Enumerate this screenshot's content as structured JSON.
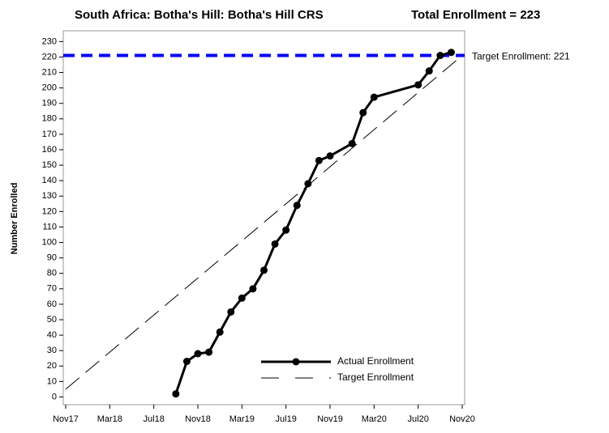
{
  "chart_data": {
    "type": "line",
    "title": "South Africa: Botha's Hill: Botha's Hill CRS",
    "subtitle": "Total Enrollment = 223",
    "y_label": "Number Enrolled",
    "xlim": [
      "2017-11",
      "2020-11"
    ],
    "xticks": [
      {
        "value": "2017-11",
        "label": "Nov17"
      },
      {
        "value": "2018-03",
        "label": "Mar18"
      },
      {
        "value": "2018-07",
        "label": "Jul18"
      },
      {
        "value": "2018-11",
        "label": "Nov18"
      },
      {
        "value": "2019-03",
        "label": "Mar19"
      },
      {
        "value": "2019-07",
        "label": "Jul19"
      },
      {
        "value": "2019-11",
        "label": "Nov19"
      },
      {
        "value": "2020-03",
        "label": "Mar20"
      },
      {
        "value": "2020-07",
        "label": "Jul20"
      },
      {
        "value": "2020-11",
        "label": "Nov20"
      }
    ],
    "ylim": [
      -5,
      237
    ],
    "yticks": [
      0,
      10,
      20,
      30,
      40,
      50,
      60,
      70,
      80,
      90,
      100,
      110,
      120,
      130,
      140,
      150,
      160,
      170,
      180,
      190,
      200,
      210,
      220,
      230
    ],
    "series": [
      {
        "name": "Actual Enrollment",
        "color": "#000000",
        "style": "solid",
        "markers": true,
        "x": [
          "2018-09",
          "2018-10",
          "2018-11",
          "2018-12",
          "2019-01",
          "2019-02",
          "2019-03",
          "2019-04",
          "2019-05",
          "2019-06",
          "2019-07",
          "2019-08",
          "2019-09",
          "2019-10",
          "2019-11",
          "2020-01",
          "2020-02",
          "2020-03",
          "2020-07",
          "2020-08",
          "2020-09",
          "2020-10"
        ],
        "values": [
          2,
          23,
          28,
          29,
          42,
          55,
          64,
          70,
          82,
          99,
          108,
          124,
          138,
          153,
          156,
          164,
          184,
          194,
          202,
          211,
          221,
          223
        ]
      },
      {
        "name": "Target Enrollment",
        "color": "#000000",
        "style": "dashed",
        "markers": false,
        "x": [
          "2017-11",
          "2020-11"
        ],
        "values": [
          5,
          221
        ]
      }
    ],
    "reference_line": {
      "value": 221,
      "label": "Target Enrollment: 221",
      "color": "#0000ff"
    }
  }
}
